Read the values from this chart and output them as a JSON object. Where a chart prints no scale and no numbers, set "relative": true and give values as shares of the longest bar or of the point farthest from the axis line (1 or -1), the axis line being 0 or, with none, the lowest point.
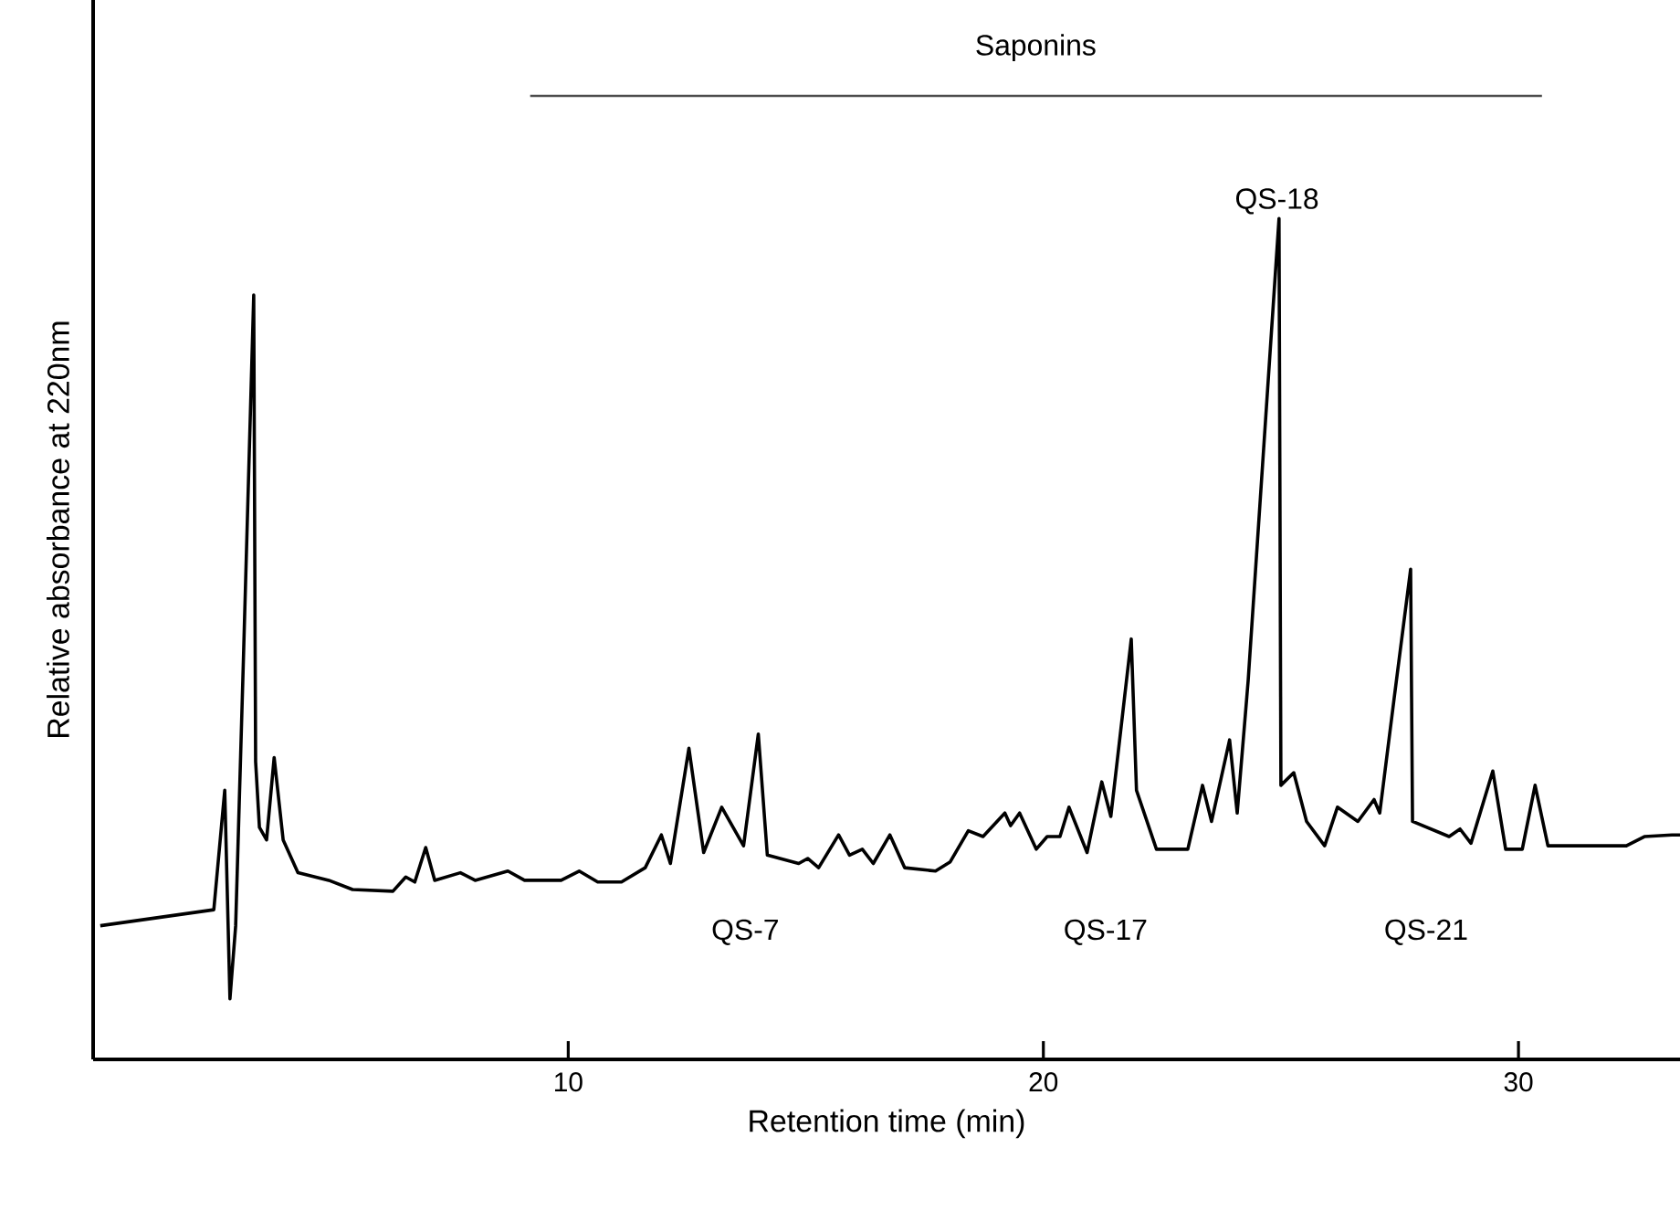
{
  "chart_data": {
    "type": "line",
    "relative": true,
    "xlabel": "Retention time (min)",
    "ylabel": "Relative absorbance at 220nm",
    "xlim": [
      0,
      33.4
    ],
    "xticks": [
      10,
      20,
      30
    ],
    "grid": false,
    "marker": "none",
    "line_style": "solid",
    "series": [
      {
        "color": "#000000",
        "x": [
          0.15,
          2.54,
          2.77,
          2.88,
          3.0,
          3.15,
          3.38,
          3.42,
          3.5,
          3.65,
          3.81,
          4.0,
          4.31,
          4.96,
          5.46,
          6.31,
          6.58,
          6.77,
          7.0,
          7.19,
          7.73,
          8.04,
          8.73,
          9.08,
          9.85,
          10.23,
          10.62,
          11.12,
          11.62,
          11.96,
          12.15,
          12.54,
          12.85,
          13.23,
          13.69,
          14.0,
          14.19,
          14.85,
          15.04,
          15.27,
          15.69,
          15.92,
          16.19,
          16.42,
          16.77,
          17.08,
          17.73,
          18.04,
          18.42,
          18.73,
          19.19,
          19.31,
          19.5,
          19.85,
          20.08,
          20.35,
          20.54,
          20.92,
          21.23,
          21.42,
          21.85,
          21.96,
          22.38,
          23.04,
          23.35,
          23.54,
          23.92,
          24.08,
          24.31,
          24.96,
          25.0,
          25.27,
          25.54,
          25.92,
          26.19,
          26.62,
          26.96,
          27.08,
          27.38,
          27.73,
          27.77,
          28.54,
          28.77,
          29.0,
          29.46,
          29.73,
          30.08,
          30.35,
          30.62,
          32.27,
          32.65,
          33.23,
          33.4
        ],
        "values": [
          0.159,
          0.178,
          0.32,
          0.072,
          0.159,
          0.45,
          0.909,
          0.354,
          0.276,
          0.261,
          0.359,
          0.261,
          0.222,
          0.213,
          0.202,
          0.2,
          0.217,
          0.211,
          0.252,
          0.213,
          0.222,
          0.213,
          0.224,
          0.213,
          0.213,
          0.224,
          0.211,
          0.211,
          0.228,
          0.267,
          0.233,
          0.37,
          0.246,
          0.3,
          0.254,
          0.387,
          0.243,
          0.233,
          0.239,
          0.228,
          0.267,
          0.243,
          0.25,
          0.233,
          0.267,
          0.228,
          0.224,
          0.235,
          0.272,
          0.265,
          0.293,
          0.278,
          0.293,
          0.25,
          0.265,
          0.265,
          0.3,
          0.246,
          0.33,
          0.289,
          0.5,
          0.32,
          0.25,
          0.25,
          0.326,
          0.283,
          0.38,
          0.293,
          0.45,
          1.0,
          0.326,
          0.341,
          0.283,
          0.254,
          0.3,
          0.283,
          0.309,
          0.293,
          0.428,
          0.583,
          0.283,
          0.265,
          0.274,
          0.257,
          0.343,
          0.25,
          0.25,
          0.326,
          0.254,
          0.254,
          0.265,
          0.267,
          0.267
        ]
      }
    ],
    "annotations": [
      "Saponins",
      "QS-18",
      "QS-7",
      "QS-17",
      "QS-21"
    ]
  }
}
